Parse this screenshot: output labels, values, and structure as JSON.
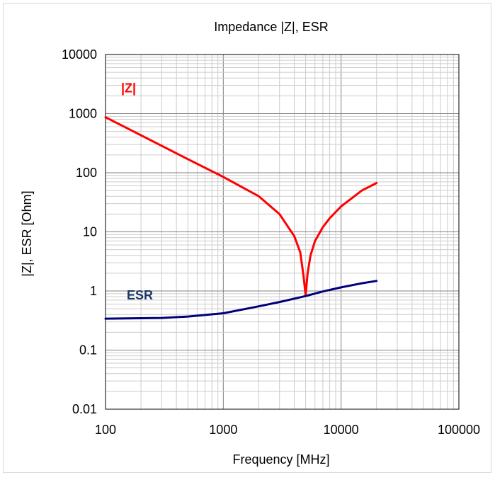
{
  "chart_data": {
    "type": "line",
    "title": "Impedance |Z|,  ESR",
    "xlabel": "Frequency [MHz]",
    "ylabel": "|Z|, ESR [Ohm]",
    "x_scale": "log",
    "y_scale": "log",
    "xlim": [
      100,
      100000
    ],
    "ylim": [
      0.01,
      10000
    ],
    "x_ticks": [
      "100",
      "1000",
      "10000",
      "100000"
    ],
    "y_ticks": [
      "0.01",
      "0.1",
      "1",
      "10",
      "100",
      "1000",
      "10000"
    ],
    "grid": true,
    "series": [
      {
        "name": "|Z|",
        "color": "#ff0000",
        "x": [
          100,
          200,
          500,
          1000,
          2000,
          3000,
          4000,
          4500,
          4800,
          5000,
          5200,
          5500,
          6000,
          7000,
          8000,
          10000,
          15000,
          20000
        ],
        "y": [
          870,
          430,
          170,
          85,
          40,
          20,
          8.5,
          4.5,
          1.8,
          0.85,
          2.0,
          4.0,
          7.0,
          12,
          17,
          27,
          50,
          67
        ]
      },
      {
        "name": "ESR",
        "color": "#00007b",
        "x": [
          100,
          300,
          500,
          1000,
          2000,
          3000,
          5000,
          7000,
          10000,
          15000,
          20000
        ],
        "y": [
          0.34,
          0.35,
          0.37,
          0.42,
          0.55,
          0.65,
          0.82,
          0.98,
          1.15,
          1.35,
          1.48
        ]
      }
    ]
  }
}
